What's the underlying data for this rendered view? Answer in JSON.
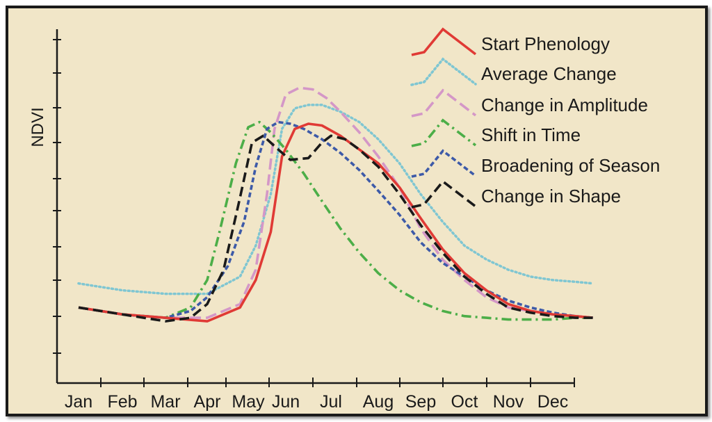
{
  "chart_data": {
    "type": "line",
    "title": "",
    "xlabel": "",
    "ylabel": "NDVI",
    "categories": [
      "Jan",
      "Feb",
      "Mar",
      "Apr",
      "May",
      "Jun",
      "Jul",
      "Aug",
      "Sep",
      "Oct",
      "Nov",
      "Dec"
    ],
    "grid": false,
    "legend_position": "top-right",
    "series": [
      {
        "name": "Start Phenology",
        "color": "#e03a35",
        "dash": "solid",
        "x": [
          0,
          1,
          2,
          3,
          3.8,
          4.2,
          4.6,
          4.9,
          5.2,
          5.5,
          5.8,
          6.2,
          6.6,
          7.0,
          7.5,
          8.0,
          8.5,
          9.0,
          9.5,
          10.0,
          10.5,
          11.0,
          11.5,
          11.9
        ],
        "y": [
          0.22,
          0.2,
          0.19,
          0.18,
          0.22,
          0.3,
          0.44,
          0.66,
          0.74,
          0.755,
          0.75,
          0.72,
          0.68,
          0.64,
          0.57,
          0.48,
          0.39,
          0.32,
          0.27,
          0.23,
          0.21,
          0.2,
          0.195,
          0.19
        ]
      },
      {
        "name": "Average Change",
        "color": "#7fc6d2",
        "dash": "dot",
        "x": [
          0,
          1,
          2,
          3,
          3.8,
          4.2,
          4.6,
          4.9,
          5.2,
          5.5,
          5.8,
          6.2,
          6.6,
          7.0,
          7.5,
          8.0,
          8.5,
          9.0,
          9.5,
          10.0,
          10.5,
          11.0,
          11.5,
          11.9
        ],
        "y": [
          0.29,
          0.27,
          0.26,
          0.26,
          0.31,
          0.4,
          0.55,
          0.74,
          0.8,
          0.81,
          0.81,
          0.79,
          0.76,
          0.71,
          0.64,
          0.55,
          0.47,
          0.4,
          0.36,
          0.33,
          0.31,
          0.3,
          0.295,
          0.29
        ]
      },
      {
        "name": "Change in Amplitude",
        "color": "#d497c7",
        "dash": "dash",
        "x": [
          0,
          1,
          2,
          3,
          3.8,
          4.2,
          4.5,
          4.7,
          5.0,
          5.3,
          5.6,
          5.9,
          6.2,
          6.6,
          7.0,
          7.5,
          8.0,
          8.5,
          9.0,
          9.5,
          10.0,
          10.5,
          11.0,
          11.5,
          11.9
        ],
        "y": [
          0.22,
          0.2,
          0.19,
          0.19,
          0.23,
          0.33,
          0.55,
          0.74,
          0.84,
          0.86,
          0.855,
          0.83,
          0.79,
          0.73,
          0.66,
          0.57,
          0.45,
          0.36,
          0.3,
          0.25,
          0.22,
          0.21,
          0.2,
          0.195,
          0.19
        ]
      },
      {
        "name": "Shift in Time",
        "color": "#4cae48",
        "dash": "dashdot",
        "x": [
          0,
          1,
          2,
          2.6,
          3.0,
          3.3,
          3.7,
          4.0,
          4.3,
          4.6,
          5.0,
          5.4,
          5.8,
          6.2,
          6.6,
          7.0,
          7.5,
          8.0,
          8.5,
          9.0,
          9.5,
          10.0,
          10.5,
          11.0,
          11.5,
          11.9
        ],
        "y": [
          0.22,
          0.2,
          0.19,
          0.22,
          0.3,
          0.44,
          0.64,
          0.745,
          0.76,
          0.73,
          0.68,
          0.61,
          0.53,
          0.45,
          0.38,
          0.32,
          0.27,
          0.235,
          0.21,
          0.195,
          0.19,
          0.185,
          0.185,
          0.185,
          0.19,
          0.19
        ]
      },
      {
        "name": "Broadening of Season",
        "color": "#3d5aa8",
        "dash": "shortdash",
        "x": [
          0,
          1,
          2,
          2.6,
          3.0,
          3.5,
          3.9,
          4.2,
          4.5,
          4.8,
          5.1,
          5.4,
          5.8,
          6.2,
          6.6,
          7.0,
          7.5,
          8.0,
          8.5,
          9.0,
          9.5,
          10.0,
          10.5,
          11.0,
          11.5,
          11.9
        ],
        "y": [
          0.22,
          0.2,
          0.19,
          0.21,
          0.25,
          0.34,
          0.47,
          0.63,
          0.74,
          0.76,
          0.755,
          0.74,
          0.71,
          0.67,
          0.62,
          0.56,
          0.49,
          0.41,
          0.35,
          0.31,
          0.27,
          0.24,
          0.22,
          0.205,
          0.195,
          0.19
        ]
      },
      {
        "name": "Change in Shape",
        "color": "#1a1a1a",
        "dash": "longdash",
        "x": [
          0,
          1,
          2,
          2.6,
          3.0,
          3.4,
          3.8,
          4.1,
          4.4,
          4.8,
          5.1,
          5.5,
          5.8,
          6.0,
          6.3,
          6.6,
          7.0,
          7.5,
          8.0,
          8.5,
          9.0,
          9.5,
          10.0,
          10.5,
          11.0,
          11.5,
          11.9
        ],
        "y": [
          0.22,
          0.2,
          0.18,
          0.19,
          0.23,
          0.33,
          0.54,
          0.7,
          0.72,
          0.68,
          0.65,
          0.655,
          0.7,
          0.72,
          0.71,
          0.68,
          0.63,
          0.55,
          0.46,
          0.38,
          0.31,
          0.26,
          0.22,
          0.205,
          0.195,
          0.19,
          0.19
        ]
      }
    ]
  }
}
